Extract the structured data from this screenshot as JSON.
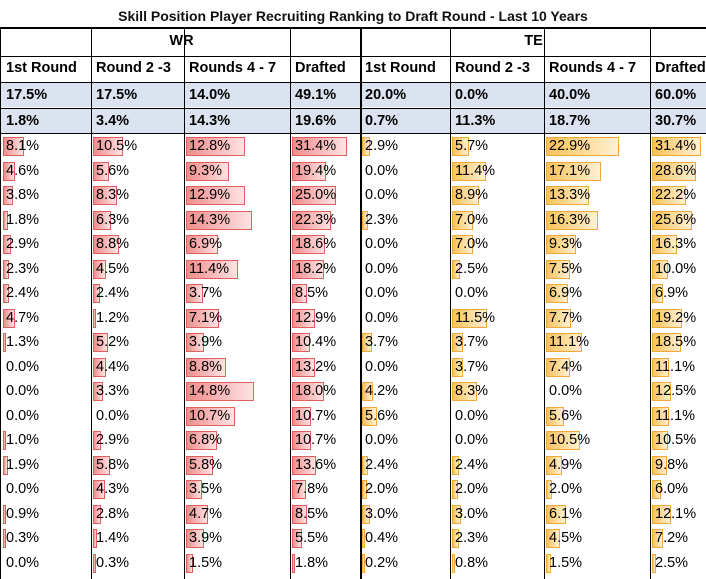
{
  "chart_data": {
    "type": "table",
    "title": "Skill Position Player Recruiting Ranking to Draft Round - Last 10 Years",
    "groups": [
      "WR",
      "TE"
    ],
    "columns": [
      "1st Round",
      "Round 2 -3",
      "Rounds 4 - 7",
      "Drafted",
      "1st Round",
      "Round 2 -3",
      "Rounds 4 - 7",
      "Drafted"
    ],
    "summary_rows": [
      [
        "17.5%",
        "17.5%",
        "14.0%",
        "49.1%",
        "20.0%",
        "0.0%",
        "40.0%",
        "60.0%"
      ],
      [
        "1.8%",
        "3.4%",
        "14.3%",
        "19.6%",
        "0.7%",
        "11.3%",
        "18.7%",
        "30.7%"
      ]
    ],
    "rows": [
      [
        "8.1%",
        "10.5%",
        "12.8%",
        "31.4%",
        "2.9%",
        "5.7%",
        "22.9%",
        "31.4%"
      ],
      [
        "4.6%",
        "5.6%",
        "9.3%",
        "19.4%",
        "0.0%",
        "11.4%",
        "17.1%",
        "28.6%"
      ],
      [
        "3.8%",
        "8.3%",
        "12.9%",
        "25.0%",
        "0.0%",
        "8.9%",
        "13.3%",
        "22.2%"
      ],
      [
        "1.8%",
        "6.3%",
        "14.3%",
        "22.3%",
        "2.3%",
        "7.0%",
        "16.3%",
        "25.6%"
      ],
      [
        "2.9%",
        "8.8%",
        "6.9%",
        "18.6%",
        "0.0%",
        "7.0%",
        "9.3%",
        "16.3%"
      ],
      [
        "2.3%",
        "4.5%",
        "11.4%",
        "18.2%",
        "0.0%",
        "2.5%",
        "7.5%",
        "10.0%"
      ],
      [
        "2.4%",
        "2.4%",
        "3.7%",
        "8.5%",
        "0.0%",
        "0.0%",
        "6.9%",
        "6.9%"
      ],
      [
        "4.7%",
        "1.2%",
        "7.1%",
        "12.9%",
        "0.0%",
        "11.5%",
        "7.7%",
        "19.2%"
      ],
      [
        "1.3%",
        "5.2%",
        "3.9%",
        "10.4%",
        "3.7%",
        "3.7%",
        "11.1%",
        "18.5%"
      ],
      [
        "0.0%",
        "4.4%",
        "8.8%",
        "13.2%",
        "0.0%",
        "3.7%",
        "7.4%",
        "11.1%"
      ],
      [
        "0.0%",
        "3.3%",
        "14.8%",
        "18.0%",
        "4.2%",
        "8.3%",
        "0.0%",
        "12.5%"
      ],
      [
        "0.0%",
        "0.0%",
        "10.7%",
        "10.7%",
        "5.6%",
        "0.0%",
        "5.6%",
        "11.1%"
      ],
      [
        "1.0%",
        "2.9%",
        "6.8%",
        "10.7%",
        "0.0%",
        "0.0%",
        "10.5%",
        "10.5%"
      ],
      [
        "1.9%",
        "5.8%",
        "5.8%",
        "13.6%",
        "2.4%",
        "2.4%",
        "4.9%",
        "9.8%"
      ],
      [
        "0.0%",
        "4.3%",
        "3.5%",
        "7.8%",
        "2.0%",
        "2.0%",
        "2.0%",
        "6.0%"
      ],
      [
        "0.9%",
        "2.8%",
        "4.7%",
        "8.5%",
        "3.0%",
        "3.0%",
        "6.1%",
        "12.1%"
      ],
      [
        "0.3%",
        "1.4%",
        "3.9%",
        "5.5%",
        "0.4%",
        "2.3%",
        "4.5%",
        "7.2%"
      ],
      [
        "0.0%",
        "0.3%",
        "1.5%",
        "1.8%",
        "0.2%",
        "0.8%",
        "1.5%",
        "2.5%"
      ]
    ],
    "bar_colors": {
      "WR": "#f28c8c",
      "TE": "#fbc256"
    },
    "summary_fill": "#dbe2f0"
  }
}
